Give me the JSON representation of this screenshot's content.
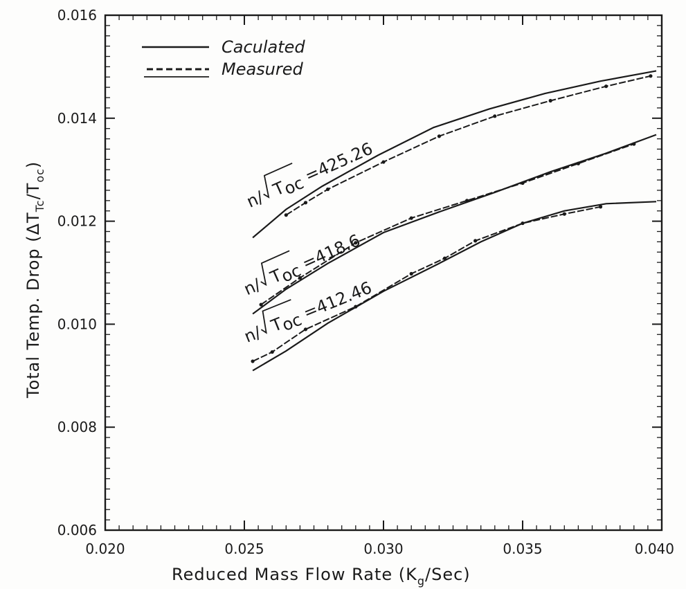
{
  "chart_data": {
    "type": "line",
    "xlabel": "Reduced Mass Flow Rate (K",
    "xlabel_sub": "g",
    "xlabel_tail": "/Sec)",
    "ylabel": "Total Temp. Drop (ΔT",
    "ylabel_sub": "Tc",
    "ylabel_tail": "/T",
    "ylabel_sub2": "oc",
    "ylabel_close": ")",
    "xlim": [
      0.02,
      0.04
    ],
    "ylim": [
      0.006,
      0.016
    ],
    "xticks": [
      "0.020",
      "0.025",
      "0.030",
      "0.035",
      "0.040"
    ],
    "yticks": [
      "0.006",
      "0.008",
      "0.010",
      "0.012",
      "0.014",
      "0.016"
    ],
    "legend": {
      "placement": "top-left",
      "entries": [
        {
          "label": "Caculated",
          "style": "solid"
        },
        {
          "label": "Measured",
          "style": "dashed"
        }
      ]
    },
    "series": [
      {
        "name": "n/√Toc =425.26",
        "label_prefix": "n/",
        "label_var": "T",
        "label_sub": "oc",
        "label_value": "=425.26",
        "calculated": {
          "x": [
            0.0253,
            0.0265,
            0.0278,
            0.0298,
            0.0318,
            0.0338,
            0.0358,
            0.0378,
            0.0398
          ],
          "y": [
            0.01168,
            0.01223,
            0.01268,
            0.01328,
            0.01382,
            0.01418,
            0.01448,
            0.01472,
            0.01492
          ]
        },
        "measured": {
          "x": [
            0.0265,
            0.0272,
            0.028,
            0.03,
            0.032,
            0.034,
            0.036,
            0.038,
            0.0396
          ],
          "y": [
            0.01212,
            0.01236,
            0.01262,
            0.01315,
            0.01365,
            0.01404,
            0.01434,
            0.01462,
            0.01482
          ]
        }
      },
      {
        "name": "n/√Toc =418.6",
        "label_prefix": "n/",
        "label_var": "T",
        "label_sub": "oc",
        "label_value": "=418.6",
        "calculated": {
          "x": [
            0.0253,
            0.0265,
            0.028,
            0.03,
            0.032,
            0.034,
            0.036,
            0.038,
            0.0398
          ],
          "y": [
            0.0102,
            0.01068,
            0.01118,
            0.01178,
            0.01218,
            0.01256,
            0.01296,
            0.01332,
            0.01368
          ]
        },
        "measured": {
          "x": [
            0.0256,
            0.027,
            0.029,
            0.031,
            0.033,
            0.035,
            0.037,
            0.039
          ],
          "y": [
            0.01038,
            0.0109,
            0.01158,
            0.01206,
            0.0124,
            0.01274,
            0.01312,
            0.0135
          ]
        }
      },
      {
        "name": "n/√Toc =412.46",
        "label_prefix": "n/",
        "label_var": "T",
        "label_sub": "oc",
        "label_value": "=412.46",
        "calculated": {
          "x": [
            0.0253,
            0.0265,
            0.028,
            0.03,
            0.032,
            0.0335,
            0.035,
            0.0365,
            0.038,
            0.0398
          ],
          "y": [
            0.0091,
            0.00948,
            0.01002,
            0.01064,
            0.01118,
            0.0116,
            0.01196,
            0.0122,
            0.01234,
            0.01238
          ]
        },
        "measured": {
          "x": [
            0.0253,
            0.026,
            0.0272,
            0.029,
            0.031,
            0.0322,
            0.0333,
            0.035,
            0.0365,
            0.0378
          ],
          "y": [
            0.00928,
            0.00946,
            0.0099,
            0.01034,
            0.01098,
            0.01128,
            0.01162,
            0.01196,
            0.01214,
            0.01228
          ]
        }
      }
    ]
  }
}
